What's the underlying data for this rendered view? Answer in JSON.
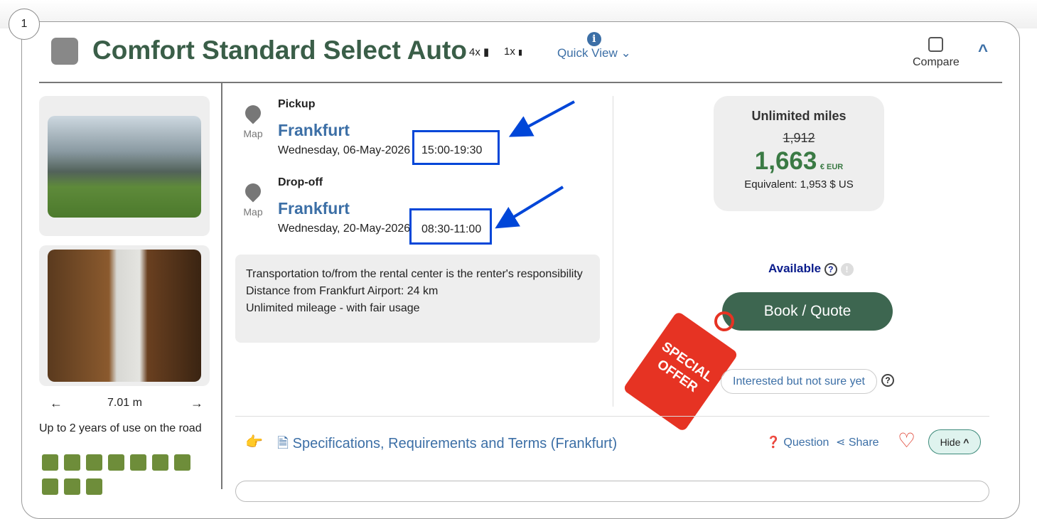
{
  "index": "1",
  "header": {
    "title": "Comfort Standard Select Auto",
    "adults": "4x",
    "children": "1x",
    "quick_view": "Quick View",
    "compare": "Compare"
  },
  "gallery": {
    "length": "7.01 m",
    "age": "Up to 2 years of use on the road"
  },
  "pickup": {
    "label": "Pickup",
    "city": "Frankfurt",
    "map": "Map",
    "date": "Wednesday, 06-May-2026",
    "time": "15:00-19:30"
  },
  "dropoff": {
    "label": "Drop-off",
    "city": "Frankfurt",
    "map": "Map",
    "date": "Wednesday, 20-May-2026",
    "time": "08:30-11:00"
  },
  "info": [
    "Transportation to/from the rental center is the renter's responsibility",
    "Distance from Frankfurt Airport: 24 km",
    "Unlimited mileage - with fair usage"
  ],
  "price": {
    "plan": "Unlimited miles",
    "old": "1,912",
    "new": "1,663",
    "currency": "€ EUR",
    "equivalent": "Equivalent: 1,953 $ US"
  },
  "availability": "Available",
  "book": "Book / Quote",
  "tag": {
    "line1": "SPECIAL",
    "line2": "OFFER"
  },
  "interested": "Interested but not sure yet",
  "footer": {
    "specs": "Specifications, Requirements and Terms (Frankfurt)",
    "question": "Question",
    "share": "Share",
    "hide": "Hide"
  },
  "colors": {
    "title": "#3a5e48",
    "link": "#3c6fa6",
    "book": "#3d6650",
    "highlight": "#0046d8",
    "tag": "#e63323"
  }
}
